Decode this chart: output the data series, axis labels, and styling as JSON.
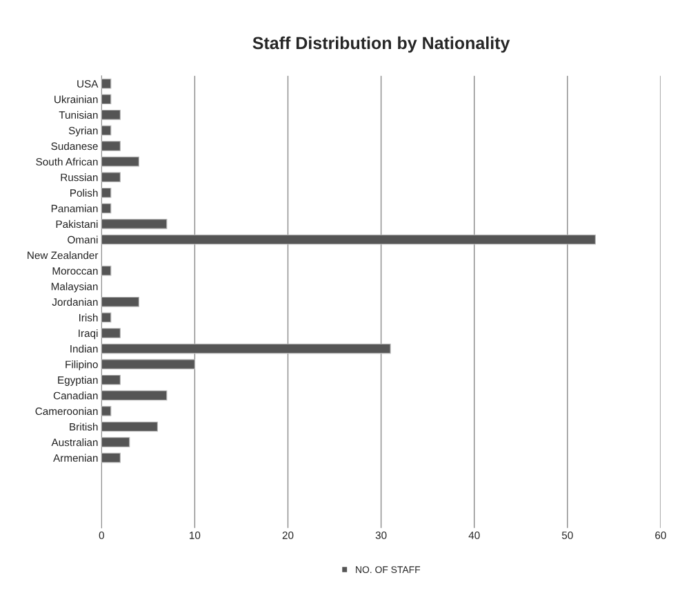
{
  "chart_data": {
    "type": "bar",
    "orientation": "horizontal",
    "title": "Staff Distribution by Nationality",
    "categories": [
      "USA",
      "Ukrainian",
      "Tunisian",
      "Syrian",
      "Sudanese",
      "South African",
      "Russian",
      "Polish",
      "Panamian",
      "Pakistani",
      "Omani",
      "New Zealander",
      "Moroccan",
      "Malaysian",
      "Jordanian",
      "Irish",
      "Iraqi",
      "Indian",
      "Filipino",
      "Egyptian",
      "Canadian",
      "Cameroonian",
      "British",
      "Australian",
      "Armenian",
      null,
      null,
      null,
      null
    ],
    "series": [
      {
        "name": "NO. OF STAFF",
        "color": "#555555",
        "values": [
          1,
          1,
          2,
          1,
          2,
          4,
          2,
          1,
          1,
          7,
          53,
          null,
          1,
          null,
          4,
          1,
          2,
          31,
          10,
          2,
          7,
          1,
          6,
          3,
          2,
          null,
          null,
          null,
          null
        ]
      }
    ],
    "xlim": [
      0,
      60
    ],
    "xticks": [
      0,
      10,
      20,
      30,
      40,
      50,
      60
    ],
    "grid": "x",
    "legend": "bottom"
  }
}
